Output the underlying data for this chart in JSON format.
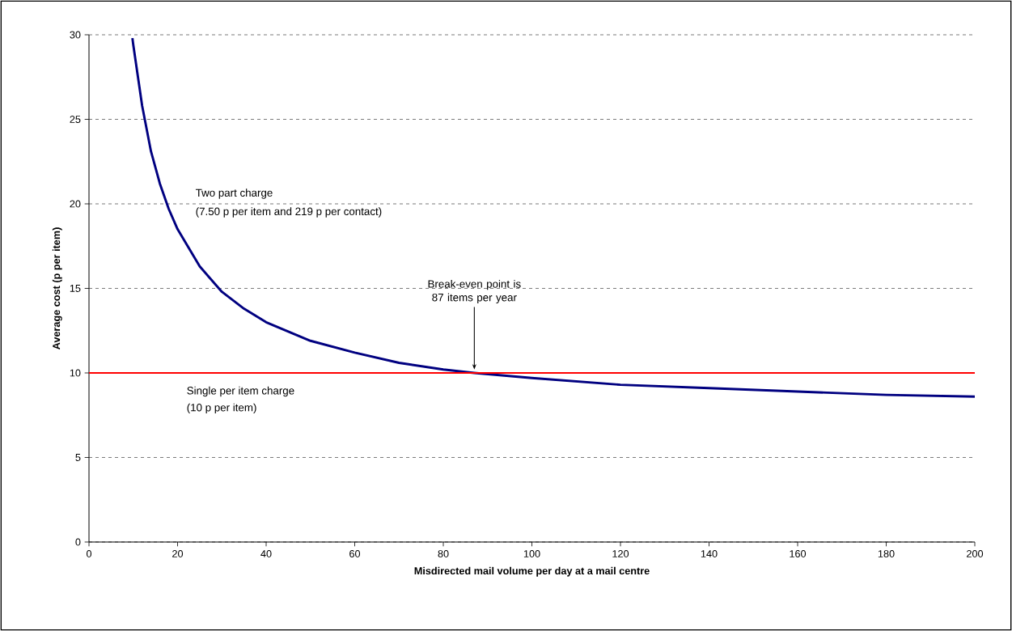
{
  "chart_data": {
    "type": "line",
    "xlabel": "Misdirected mail volume per day at a mail centre",
    "ylabel": "Average cost (p per item)",
    "series": [
      {
        "name": "Two part charge",
        "color": "#000080",
        "x": [
          9.8,
          10,
          12,
          14,
          16,
          18,
          20,
          25,
          30,
          35,
          40,
          50,
          60,
          70,
          80,
          87,
          100,
          120,
          140,
          160,
          180,
          200
        ],
        "values": [
          29.8,
          29.4,
          25.8,
          23.1,
          21.2,
          19.7,
          18.5,
          16.3,
          14.8,
          13.8,
          13.0,
          11.9,
          11.2,
          10.6,
          10.2,
          10.0,
          9.7,
          9.3,
          9.1,
          8.9,
          8.7,
          8.6
        ]
      },
      {
        "name": "Single per item charge",
        "color": "#ff0000",
        "x": [
          0,
          200
        ],
        "values": [
          10,
          10
        ]
      }
    ],
    "annotations": [
      "(7.50 p per item and 219 p per contact)",
      "(10 p per item)",
      {
        "text": "Break-even point is 87 items per year",
        "x": 87,
        "y": 10
      }
    ],
    "xlim": [
      0,
      200
    ],
    "xticks": [
      0,
      20,
      40,
      60,
      80,
      100,
      120,
      140,
      160,
      180,
      200
    ],
    "ylim": [
      0,
      30
    ],
    "yticks": [
      0,
      5,
      10,
      15,
      20,
      25,
      30
    ],
    "grid": "y",
    "legend": false,
    "marker": "none",
    "line_style": "solid"
  }
}
